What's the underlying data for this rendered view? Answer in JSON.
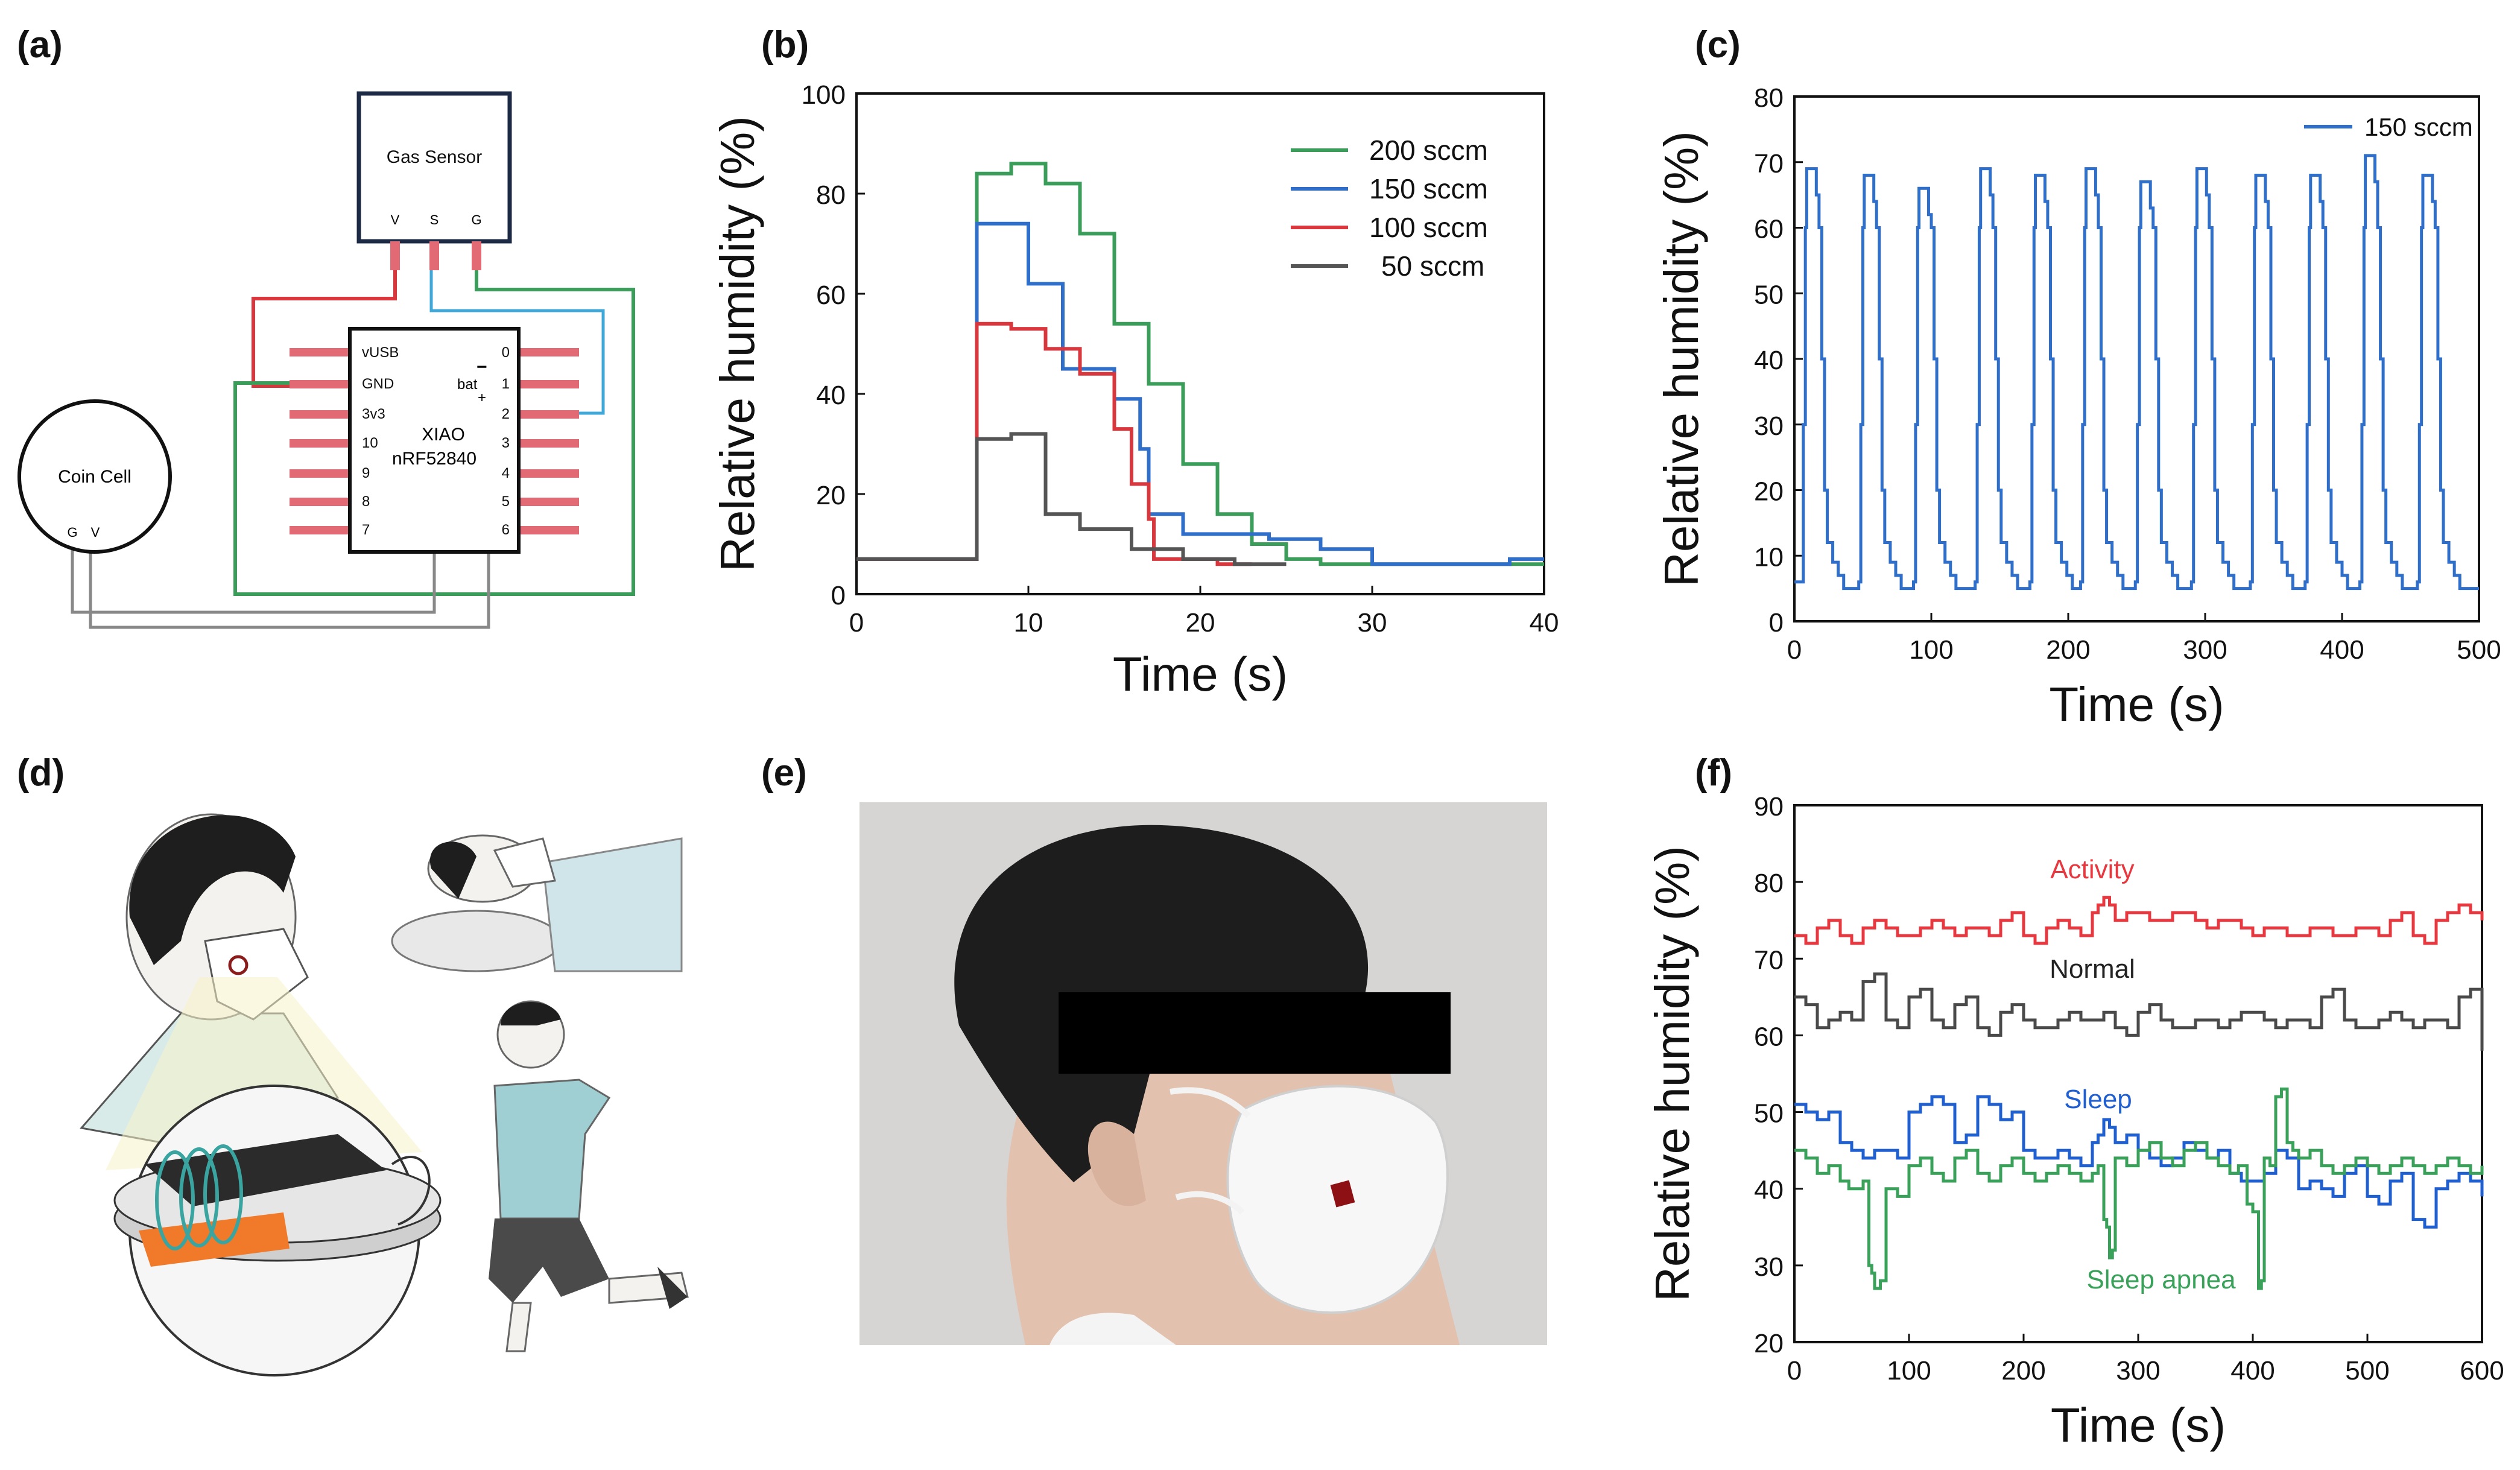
{
  "panel_labels": {
    "a": "(a)",
    "b": "(b)",
    "c": "(c)",
    "d": "(d)",
    "e": "(e)",
    "f": "(f)"
  },
  "circuit": {
    "gas_sensor": "Gas Sensor",
    "gas_pins": [
      "V",
      "S",
      "G"
    ],
    "coin_cell": "Coin Cell",
    "coin_pins": [
      "G",
      "V"
    ],
    "mcu_line1": "XIAO",
    "mcu_line2": "nRF52840",
    "left_pins": [
      "vUSB",
      "GND",
      "3v3",
      "10",
      "9",
      "8",
      "7"
    ],
    "right_pins": [
      "0",
      "1",
      "2",
      "3",
      "4",
      "5",
      "6"
    ],
    "bat_label": "bat",
    "bat_minus": "−",
    "bat_plus": "+"
  },
  "colors": {
    "green": "#3a9e5a",
    "blue": "#2f6fc9",
    "red": "#d8373e",
    "gray": "#555555",
    "activity": "#e8383f",
    "sleep": "#1f5fcf",
    "apnea": "#3aa15a",
    "normal": "#4a4a4a"
  },
  "chart_data": [
    {
      "id": "b",
      "type": "line",
      "xlabel": "Time (s)",
      "ylabel": "Relative humidity (%)",
      "xlim": [
        0,
        40
      ],
      "ylim": [
        0,
        100
      ],
      "xticks": [
        0,
        10,
        20,
        30,
        40
      ],
      "yticks": [
        0,
        20,
        40,
        60,
        80,
        100
      ],
      "legend": "top-right",
      "series": [
        {
          "name": "200 sccm",
          "color": "#3a9e5a",
          "x": [
            0,
            6.5,
            7,
            9,
            11,
            13,
            15,
            17,
            19,
            21,
            23,
            25,
            27,
            30,
            36,
            40
          ],
          "y": [
            7,
            7,
            84,
            86,
            82,
            72,
            54,
            42,
            26,
            16,
            10,
            7,
            6,
            6,
            6,
            6
          ]
        },
        {
          "name": "150 sccm",
          "color": "#2f6fc9",
          "x": [
            0,
            6.5,
            7,
            10,
            12,
            15,
            16.5,
            17,
            19,
            22,
            24,
            27,
            30,
            36,
            38,
            40
          ],
          "y": [
            7,
            7,
            74,
            62,
            45,
            39,
            29,
            16,
            12,
            12,
            11,
            9,
            6,
            6,
            7,
            7
          ]
        },
        {
          "name": "100 sccm",
          "color": "#d8373e",
          "x": [
            0,
            6.5,
            7,
            9,
            11,
            13,
            15,
            16,
            17,
            17.3,
            19,
            21,
            23
          ],
          "y": [
            7,
            7,
            54,
            53,
            49,
            44,
            33,
            22,
            15,
            7,
            7,
            6,
            6
          ]
        },
        {
          "name": "50 sccm",
          "color": "#555555",
          "x": [
            0,
            6.5,
            7,
            9,
            11,
            13,
            16,
            19,
            22,
            25
          ],
          "y": [
            7,
            7,
            31,
            32,
            16,
            13,
            9,
            7,
            6,
            6
          ]
        }
      ]
    },
    {
      "id": "c",
      "type": "line",
      "xlabel": "Time (s)",
      "ylabel": "Relative humidity (%)",
      "xlim": [
        0,
        500
      ],
      "ylim": [
        0,
        80
      ],
      "xticks": [
        0,
        100,
        200,
        300,
        400,
        500
      ],
      "yticks": [
        0,
        10,
        20,
        30,
        40,
        50,
        60,
        70,
        80
      ],
      "legend": "top-right",
      "series": [
        {
          "name": "150 sccm",
          "color": "#2f6fc9",
          "peak_times": [
            8,
            50,
            90,
            135,
            175,
            212,
            252,
            293,
            336,
            376,
            416,
            458
          ],
          "peaks": [
            69,
            68,
            66,
            69,
            68,
            69,
            67,
            69,
            68,
            68,
            71,
            68
          ],
          "baseline": 5
        }
      ]
    },
    {
      "id": "f",
      "type": "line",
      "xlabel": "Time (s)",
      "ylabel": "Relative humidity (%)",
      "xlim": [
        0,
        600
      ],
      "ylim": [
        20,
        90
      ],
      "xticks": [
        0,
        100,
        200,
        300,
        400,
        500,
        600
      ],
      "yticks": [
        20,
        30,
        40,
        50,
        60,
        70,
        80,
        90
      ],
      "series": [
        {
          "name": "Activity",
          "color": "#e8383f",
          "x": [
            0,
            20,
            40,
            60,
            80,
            100,
            120,
            140,
            160,
            180,
            200,
            220,
            240,
            260,
            270,
            280,
            300,
            320,
            340,
            360,
            380,
            400,
            420,
            440,
            460,
            480,
            500,
            520,
            540,
            560,
            580,
            600
          ],
          "y": [
            73,
            74,
            73,
            74,
            74,
            73,
            75,
            73,
            74,
            75,
            73,
            74,
            74,
            76,
            78,
            75,
            76,
            75,
            76,
            74,
            75,
            73,
            74,
            73,
            74,
            73,
            74,
            75,
            73,
            75,
            77,
            75
          ]
        },
        {
          "name": "Normal",
          "color": "#4a4a4a",
          "x": [
            0,
            20,
            40,
            60,
            80,
            100,
            120,
            140,
            160,
            180,
            200,
            220,
            240,
            260,
            280,
            300,
            320,
            340,
            360,
            380,
            400,
            420,
            440,
            460,
            480,
            500,
            520,
            540,
            560,
            580,
            600
          ],
          "y": [
            65,
            61,
            63,
            67,
            62,
            65,
            62,
            64,
            61,
            63,
            62,
            61,
            63,
            62,
            61,
            63,
            62,
            61,
            62,
            62,
            63,
            61,
            62,
            65,
            62,
            61,
            63,
            61,
            62,
            65,
            58
          ]
        },
        {
          "name": "Sleep",
          "color": "#1f5fcf",
          "x": [
            0,
            20,
            40,
            60,
            80,
            100,
            120,
            140,
            160,
            180,
            200,
            220,
            240,
            260,
            270,
            280,
            300,
            320,
            340,
            360,
            380,
            400,
            420,
            440,
            460,
            480,
            500,
            520,
            540,
            560,
            580,
            600
          ],
          "y": [
            51,
            49,
            46,
            44,
            45,
            50,
            52,
            46,
            52,
            49,
            45,
            44,
            44,
            46,
            49,
            46,
            45,
            43,
            46,
            44,
            42,
            41,
            45,
            40,
            40,
            42,
            39,
            41,
            36,
            40,
            42,
            39
          ]
        },
        {
          "name": "Sleep apnea",
          "color": "#3aa15a",
          "x": [
            0,
            20,
            40,
            55,
            65,
            70,
            80,
            100,
            120,
            140,
            160,
            180,
            200,
            220,
            240,
            260,
            270,
            275,
            280,
            300,
            320,
            340,
            360,
            380,
            395,
            405,
            410,
            420,
            430,
            440,
            460,
            480,
            500,
            520,
            540,
            560,
            580,
            600
          ],
          "y": [
            45,
            42,
            41,
            40,
            30,
            27,
            40,
            43,
            42,
            44,
            42,
            43,
            42,
            42,
            42,
            42,
            36,
            31,
            44,
            45,
            44,
            45,
            44,
            42,
            38,
            27,
            44,
            52,
            46,
            44,
            43,
            43,
            43,
            43,
            43,
            43,
            43,
            43
          ]
        }
      ],
      "annotations": [
        {
          "text": "Activity",
          "x": 260,
          "y": 80.5,
          "color": "#e8383f"
        },
        {
          "text": "Normal",
          "x": 260,
          "y": 67.5,
          "color": "#222222"
        },
        {
          "text": "Sleep",
          "x": 265,
          "y": 50.5,
          "color": "#1f5fcf"
        },
        {
          "text": "Sleep apnea",
          "x": 320,
          "y": 27,
          "color": "#3aa15a"
        }
      ]
    }
  ]
}
